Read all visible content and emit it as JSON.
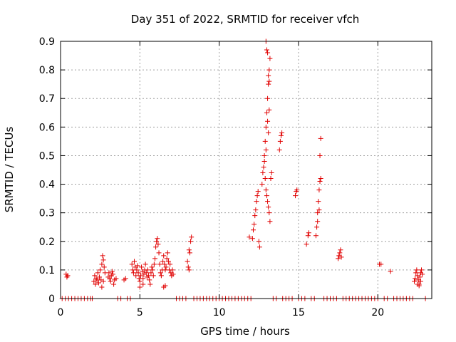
{
  "chart_data": {
    "type": "scatter",
    "title": "Day 351 of 2022, SRMTID for receiver vfch",
    "xlabel": "GPS time / hours",
    "ylabel": "SRMTID / TECUs",
    "xlim": [
      0,
      23.4
    ],
    "ylim": [
      0,
      0.9
    ],
    "xticks": [
      0,
      5,
      10,
      15,
      20
    ],
    "xtick_labels": [
      "0",
      "5",
      "10",
      "15",
      "20"
    ],
    "yticks": [
      0,
      0.1,
      0.2,
      0.3,
      0.4,
      0.5,
      0.6,
      0.7,
      0.8,
      0.9
    ],
    "ytick_labels": [
      "0",
      "0.1",
      "0.2",
      "0.3",
      "0.4",
      "0.5",
      "0.6",
      "0.7",
      "0.8",
      "0.9"
    ],
    "grid": true,
    "marker": "+",
    "color": "#e00000",
    "series": [
      {
        "name": "SRMTID",
        "points": [
          [
            0.35,
            0.085
          ],
          [
            0.4,
            0.075
          ],
          [
            0.45,
            0.08
          ],
          [
            2.1,
            0.06
          ],
          [
            2.15,
            0.08
          ],
          [
            2.2,
            0.05
          ],
          [
            2.25,
            0.07
          ],
          [
            2.3,
            0.065
          ],
          [
            2.35,
            0.09
          ],
          [
            2.4,
            0.055
          ],
          [
            2.45,
            0.075
          ],
          [
            2.5,
            0.1
          ],
          [
            2.55,
            0.065
          ],
          [
            2.6,
            0.12
          ],
          [
            2.65,
            0.15
          ],
          [
            2.7,
            0.135
          ],
          [
            2.75,
            0.11
          ],
          [
            2.8,
            0.09
          ],
          [
            2.6,
            0.04
          ],
          [
            2.7,
            0.06
          ],
          [
            3.0,
            0.075
          ],
          [
            3.05,
            0.09
          ],
          [
            3.1,
            0.07
          ],
          [
            3.15,
            0.06
          ],
          [
            3.2,
            0.08
          ],
          [
            3.25,
            0.095
          ],
          [
            3.3,
            0.085
          ],
          [
            3.35,
            0.05
          ],
          [
            3.4,
            0.065
          ],
          [
            3.5,
            0.07
          ],
          [
            4.0,
            0.065
          ],
          [
            4.1,
            0.07
          ],
          [
            4.5,
            0.12
          ],
          [
            4.55,
            0.1
          ],
          [
            4.6,
            0.09
          ],
          [
            4.65,
            0.13
          ],
          [
            4.7,
            0.11
          ],
          [
            4.75,
            0.08
          ],
          [
            4.8,
            0.1
          ],
          [
            4.85,
            0.115
          ],
          [
            4.9,
            0.09
          ],
          [
            4.95,
            0.07
          ],
          [
            5.0,
            0.06
          ],
          [
            5.05,
            0.08
          ],
          [
            5.1,
            0.11
          ],
          [
            5.15,
            0.095
          ],
          [
            5.2,
            0.07
          ],
          [
            5.25,
            0.085
          ],
          [
            5.3,
            0.1
          ],
          [
            5.35,
            0.12
          ],
          [
            5.4,
            0.09
          ],
          [
            5.45,
            0.075
          ],
          [
            5.5,
            0.1
          ],
          [
            5.55,
            0.08
          ],
          [
            5.6,
            0.065
          ],
          [
            5.65,
            0.05
          ],
          [
            5.7,
            0.09
          ],
          [
            5.75,
            0.11
          ],
          [
            5.8,
            0.1
          ],
          [
            5.85,
            0.08
          ],
          [
            5.9,
            0.12
          ],
          [
            5.95,
            0.14
          ],
          [
            6.0,
            0.18
          ],
          [
            6.05,
            0.2
          ],
          [
            6.1,
            0.21
          ],
          [
            6.15,
            0.19
          ],
          [
            6.2,
            0.16
          ],
          [
            6.25,
            0.12
          ],
          [
            6.3,
            0.09
          ],
          [
            6.35,
            0.08
          ],
          [
            6.4,
            0.1
          ],
          [
            6.45,
            0.13
          ],
          [
            6.5,
            0.15
          ],
          [
            6.55,
            0.12
          ],
          [
            6.6,
            0.1
          ],
          [
            6.65,
            0.11
          ],
          [
            6.7,
            0.14
          ],
          [
            6.75,
            0.16
          ],
          [
            6.8,
            0.13
          ],
          [
            6.85,
            0.1
          ],
          [
            6.9,
            0.12
          ],
          [
            6.95,
            0.09
          ],
          [
            7.0,
            0.08
          ],
          [
            7.05,
            0.1
          ],
          [
            7.1,
            0.085
          ],
          [
            6.5,
            0.04
          ],
          [
            6.6,
            0.045
          ],
          [
            5.0,
            0.04
          ],
          [
            5.2,
            0.05
          ],
          [
            8.0,
            0.13
          ],
          [
            8.05,
            0.11
          ],
          [
            8.1,
            0.17
          ],
          [
            8.15,
            0.16
          ],
          [
            8.2,
            0.2
          ],
          [
            8.25,
            0.215
          ],
          [
            8.1,
            0.1
          ],
          [
            11.9,
            0.215
          ],
          [
            12.1,
            0.21
          ],
          [
            12.15,
            0.24
          ],
          [
            12.2,
            0.26
          ],
          [
            12.25,
            0.29
          ],
          [
            12.3,
            0.31
          ],
          [
            12.35,
            0.34
          ],
          [
            12.4,
            0.36
          ],
          [
            12.45,
            0.375
          ],
          [
            12.5,
            0.2
          ],
          [
            12.55,
            0.18
          ],
          [
            12.7,
            0.4
          ],
          [
            12.75,
            0.44
          ],
          [
            12.8,
            0.46
          ],
          [
            12.85,
            0.5
          ],
          [
            12.9,
            0.55
          ],
          [
            12.95,
            0.6
          ],
          [
            13.0,
            0.65
          ],
          [
            13.05,
            0.7
          ],
          [
            13.1,
            0.75
          ],
          [
            13.15,
            0.8
          ],
          [
            13.2,
            0.84
          ],
          [
            12.95,
            0.9
          ],
          [
            13.0,
            0.87
          ],
          [
            13.05,
            0.86
          ],
          [
            13.1,
            0.78
          ],
          [
            13.15,
            0.76
          ],
          [
            12.85,
            0.48
          ],
          [
            12.9,
            0.42
          ],
          [
            12.95,
            0.38
          ],
          [
            13.0,
            0.36
          ],
          [
            13.05,
            0.34
          ],
          [
            13.1,
            0.32
          ],
          [
            13.15,
            0.3
          ],
          [
            13.2,
            0.27
          ],
          [
            13.25,
            0.42
          ],
          [
            13.3,
            0.44
          ],
          [
            12.95,
            0.52
          ],
          [
            13.05,
            0.62
          ],
          [
            13.1,
            0.58
          ],
          [
            13.15,
            0.66
          ],
          [
            13.8,
            0.52
          ],
          [
            13.85,
            0.55
          ],
          [
            13.9,
            0.57
          ],
          [
            13.95,
            0.58
          ],
          [
            14.8,
            0.36
          ],
          [
            14.85,
            0.375
          ],
          [
            14.9,
            0.38
          ],
          [
            15.5,
            0.19
          ],
          [
            15.6,
            0.22
          ],
          [
            15.65,
            0.23
          ],
          [
            16.1,
            0.22
          ],
          [
            16.15,
            0.25
          ],
          [
            16.2,
            0.3
          ],
          [
            16.25,
            0.34
          ],
          [
            16.3,
            0.38
          ],
          [
            16.35,
            0.41
          ],
          [
            16.4,
            0.42
          ],
          [
            16.2,
            0.27
          ],
          [
            16.3,
            0.31
          ],
          [
            16.35,
            0.5
          ],
          [
            16.4,
            0.56
          ],
          [
            17.5,
            0.14
          ],
          [
            17.55,
            0.15
          ],
          [
            17.6,
            0.16
          ],
          [
            17.65,
            0.17
          ],
          [
            17.7,
            0.145
          ],
          [
            20.1,
            0.12
          ],
          [
            20.2,
            0.12
          ],
          [
            20.8,
            0.095
          ],
          [
            22.3,
            0.06
          ],
          [
            22.35,
            0.07
          ],
          [
            22.4,
            0.09
          ],
          [
            22.45,
            0.1
          ],
          [
            22.5,
            0.08
          ],
          [
            22.55,
            0.065
          ],
          [
            22.6,
            0.05
          ],
          [
            22.65,
            0.075
          ],
          [
            22.7,
            0.09
          ],
          [
            22.75,
            0.1
          ],
          [
            22.8,
            0.085
          ],
          [
            22.5,
            0.05
          ],
          [
            22.6,
            0.045
          ],
          [
            22.7,
            0.06
          ]
        ],
        "zero_x": [
          0.1,
          0.3,
          0.5,
          0.7,
          0.9,
          1.1,
          1.3,
          1.5,
          1.7,
          1.9,
          2.0,
          3.6,
          3.8,
          4.2,
          4.4,
          7.3,
          7.5,
          7.7,
          7.9,
          8.4,
          8.6,
          8.8,
          9.0,
          9.2,
          9.4,
          9.6,
          9.8,
          10.0,
          10.2,
          10.4,
          10.6,
          10.8,
          11.0,
          11.2,
          11.4,
          11.6,
          11.8,
          12.0,
          13.4,
          13.6,
          14.0,
          14.2,
          14.4,
          14.6,
          15.0,
          15.2,
          15.4,
          15.8,
          16.0,
          16.6,
          16.8,
          17.0,
          17.2,
          17.4,
          17.8,
          18.0,
          18.2,
          18.4,
          18.6,
          18.8,
          19.0,
          19.2,
          19.4,
          19.6,
          19.8,
          20.0,
          20.4,
          20.6,
          21.0,
          21.2,
          21.4,
          21.6,
          21.8,
          22.0,
          22.2,
          23.0
        ]
      }
    ]
  }
}
